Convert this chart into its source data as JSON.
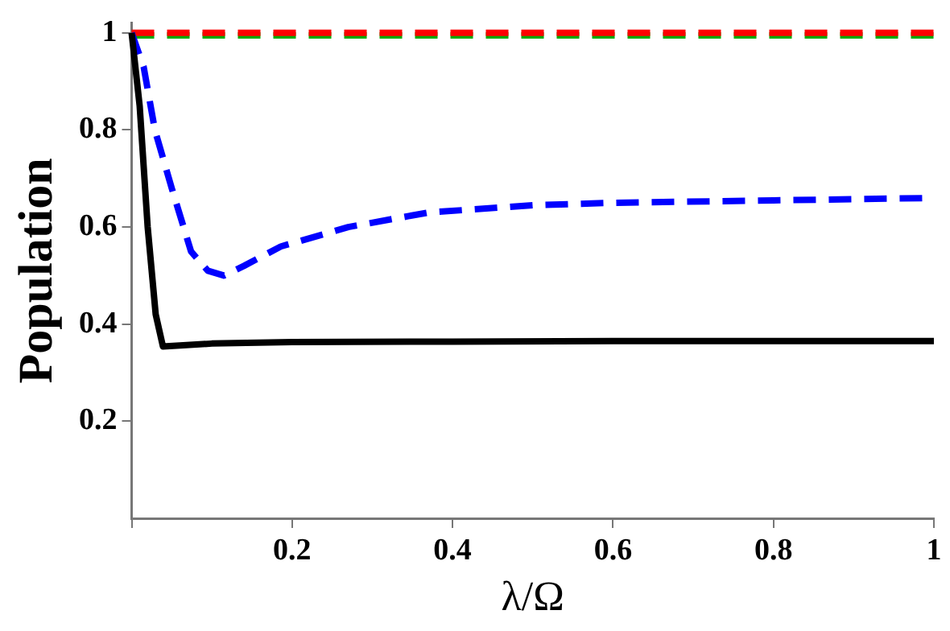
{
  "chart_data": {
    "type": "line",
    "xlabel": "λ/Ω",
    "ylabel": "Population",
    "xlim": [
      0,
      1
    ],
    "ylim": [
      0,
      1.02
    ],
    "xticks": [
      {
        "value": 0,
        "label": null
      },
      0.2,
      0.4,
      0.6,
      0.8,
      1
    ],
    "yticks": [
      0.2,
      0.4,
      0.6,
      0.8,
      1
    ],
    "grid": false,
    "legend": false,
    "marker": "none",
    "series": [
      {
        "color": "#000000",
        "line_style": "solid",
        "x": [
          0,
          0.01,
          0.02,
          0.03,
          0.039,
          0.06,
          0.1,
          0.2,
          0.4,
          0.6,
          0.8,
          1
        ],
        "values": [
          1,
          0.85,
          0.6,
          0.42,
          0.354,
          0.356,
          0.36,
          0.363,
          0.364,
          0.365,
          0.365,
          0.365
        ]
      },
      {
        "color": "#0000ff",
        "line_style": "dashed",
        "x": [
          0,
          0.015,
          0.029,
          0.05,
          0.074,
          0.095,
          0.115,
          0.14,
          0.186,
          0.27,
          0.37,
          0.5,
          0.6,
          0.8,
          1
        ],
        "values": [
          1,
          0.93,
          0.8,
          0.68,
          0.55,
          0.51,
          0.5,
          0.52,
          0.56,
          0.6,
          0.63,
          0.645,
          0.65,
          0.655,
          0.66
        ]
      },
      {
        "color": "#ff0000",
        "line_style": "dashed",
        "x": [
          0,
          1
        ],
        "values": [
          1,
          1
        ]
      },
      {
        "color": "#00aa00",
        "line_style": "dashed",
        "x": [
          0,
          1
        ],
        "values": [
          0.995,
          0.995
        ]
      }
    ]
  }
}
